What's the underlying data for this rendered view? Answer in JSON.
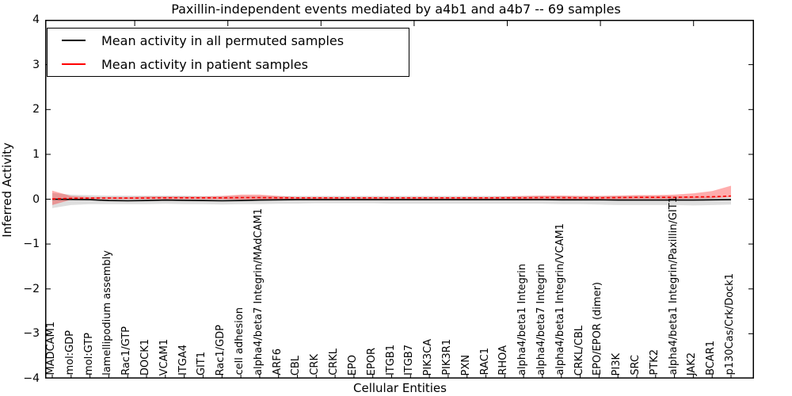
{
  "chart_data": {
    "type": "line",
    "title": "Paxillin-independent events mediated by a4b1 and a4b7 -- 69 samples",
    "xlabel": "Cellular Entities",
    "ylabel": "Inferred Activity",
    "ylim": [
      -4,
      4
    ],
    "yticks": [
      4,
      3,
      2,
      1,
      0,
      -1,
      -2,
      -3,
      -4
    ],
    "grid": false,
    "legend_position": "upper left",
    "categories": [
      "MADCAM1",
      "mol:GDP",
      "mol:GTP",
      "lamellipodium assembly",
      "Rac1/GTP",
      "DOCK1",
      "VCAM1",
      "ITGA4",
      "GIT1",
      "Rac1/GDP",
      "cell adhesion",
      "alpha4/beta7 Integrin/MAdCAM1",
      "ARF6",
      "CBL",
      "CRK",
      "CRKL",
      "EPO",
      "EPOR",
      "ITGB1",
      "ITGB7",
      "PIK3CA",
      "PIK3R1",
      "PXN",
      "RAC1",
      "RHOA",
      "alpha4/beta1 Integrin",
      "alpha4/beta7 Integrin",
      "alpha4/beta1 Integrin/VCAM1",
      "CRKL/CBL",
      "EPO/EPOR (dimer)",
      "PI3K",
      "SRC",
      "PTK2",
      "alpha4/beta1 Integrin/Paxillin/GIT1",
      "JAK2",
      "BCAR1",
      "p130Cas/Crk/Dock1"
    ],
    "series": [
      {
        "name": "Mean activity in all permuted samples",
        "color": "#000000",
        "line": "solid",
        "band_color": "rgba(0,0,0,0.13)",
        "values": [
          0.0,
          -0.005,
          -0.01,
          -0.03,
          -0.035,
          -0.03,
          -0.02,
          -0.025,
          -0.03,
          -0.035,
          -0.03,
          -0.02,
          -0.015,
          -0.01,
          -0.01,
          -0.01,
          -0.01,
          -0.01,
          -0.01,
          -0.01,
          -0.01,
          -0.01,
          -0.01,
          -0.01,
          -0.01,
          -0.01,
          -0.01,
          -0.015,
          -0.015,
          -0.015,
          -0.02,
          -0.02,
          -0.02,
          -0.02,
          -0.02,
          -0.015,
          -0.01
        ],
        "band_low": [
          -0.2,
          -0.13,
          -0.11,
          -0.11,
          -0.11,
          -0.11,
          -0.1,
          -0.11,
          -0.11,
          -0.12,
          -0.11,
          -0.11,
          -0.1,
          -0.1,
          -0.09,
          -0.09,
          -0.09,
          -0.09,
          -0.1,
          -0.1,
          -0.1,
          -0.1,
          -0.1,
          -0.1,
          -0.1,
          -0.1,
          -0.1,
          -0.11,
          -0.11,
          -0.12,
          -0.13,
          -0.13,
          -0.13,
          -0.13,
          -0.14,
          -0.13,
          -0.12
        ],
        "band_high": [
          0.14,
          0.1,
          0.09,
          0.08,
          0.08,
          0.08,
          0.08,
          0.08,
          0.07,
          0.07,
          0.07,
          0.07,
          0.07,
          0.07,
          0.07,
          0.07,
          0.07,
          0.07,
          0.07,
          0.07,
          0.07,
          0.07,
          0.07,
          0.07,
          0.07,
          0.07,
          0.07,
          0.07,
          0.07,
          0.07,
          0.07,
          0.07,
          0.07,
          0.07,
          0.06,
          0.06,
          0.06
        ]
      },
      {
        "name": "Mean activity in patient samples",
        "color": "#ff0000",
        "line": "dashed",
        "band_color": "rgba(255,0,0,0.32)",
        "values": [
          0.005,
          0.02,
          0.025,
          0.025,
          0.025,
          0.025,
          0.03,
          0.03,
          0.03,
          0.03,
          0.035,
          0.035,
          0.03,
          0.03,
          0.03,
          0.03,
          0.03,
          0.03,
          0.03,
          0.03,
          0.03,
          0.03,
          0.03,
          0.03,
          0.03,
          0.03,
          0.035,
          0.035,
          0.03,
          0.03,
          0.035,
          0.04,
          0.04,
          0.04,
          0.05,
          0.055,
          0.07
        ],
        "band_low": [
          -0.13,
          -0.01,
          0.0,
          0.0,
          0.0,
          0.0,
          0.0,
          0.0,
          0.0,
          -0.005,
          -0.01,
          -0.01,
          0.0,
          0.0,
          0.0,
          0.0,
          0.0,
          0.0,
          0.0,
          0.0,
          0.0,
          0.0,
          0.0,
          0.0,
          0.0,
          0.0,
          0.0,
          0.0,
          0.0,
          0.0,
          0.0,
          0.005,
          0.005,
          0.005,
          0.01,
          0.02,
          0.05
        ],
        "band_high": [
          0.19,
          0.07,
          0.05,
          0.05,
          0.05,
          0.06,
          0.06,
          0.06,
          0.06,
          0.07,
          0.1,
          0.1,
          0.07,
          0.05,
          0.05,
          0.05,
          0.05,
          0.05,
          0.05,
          0.05,
          0.05,
          0.05,
          0.05,
          0.05,
          0.06,
          0.07,
          0.08,
          0.08,
          0.07,
          0.07,
          0.08,
          0.09,
          0.09,
          0.1,
          0.13,
          0.18,
          0.3
        ]
      }
    ]
  }
}
